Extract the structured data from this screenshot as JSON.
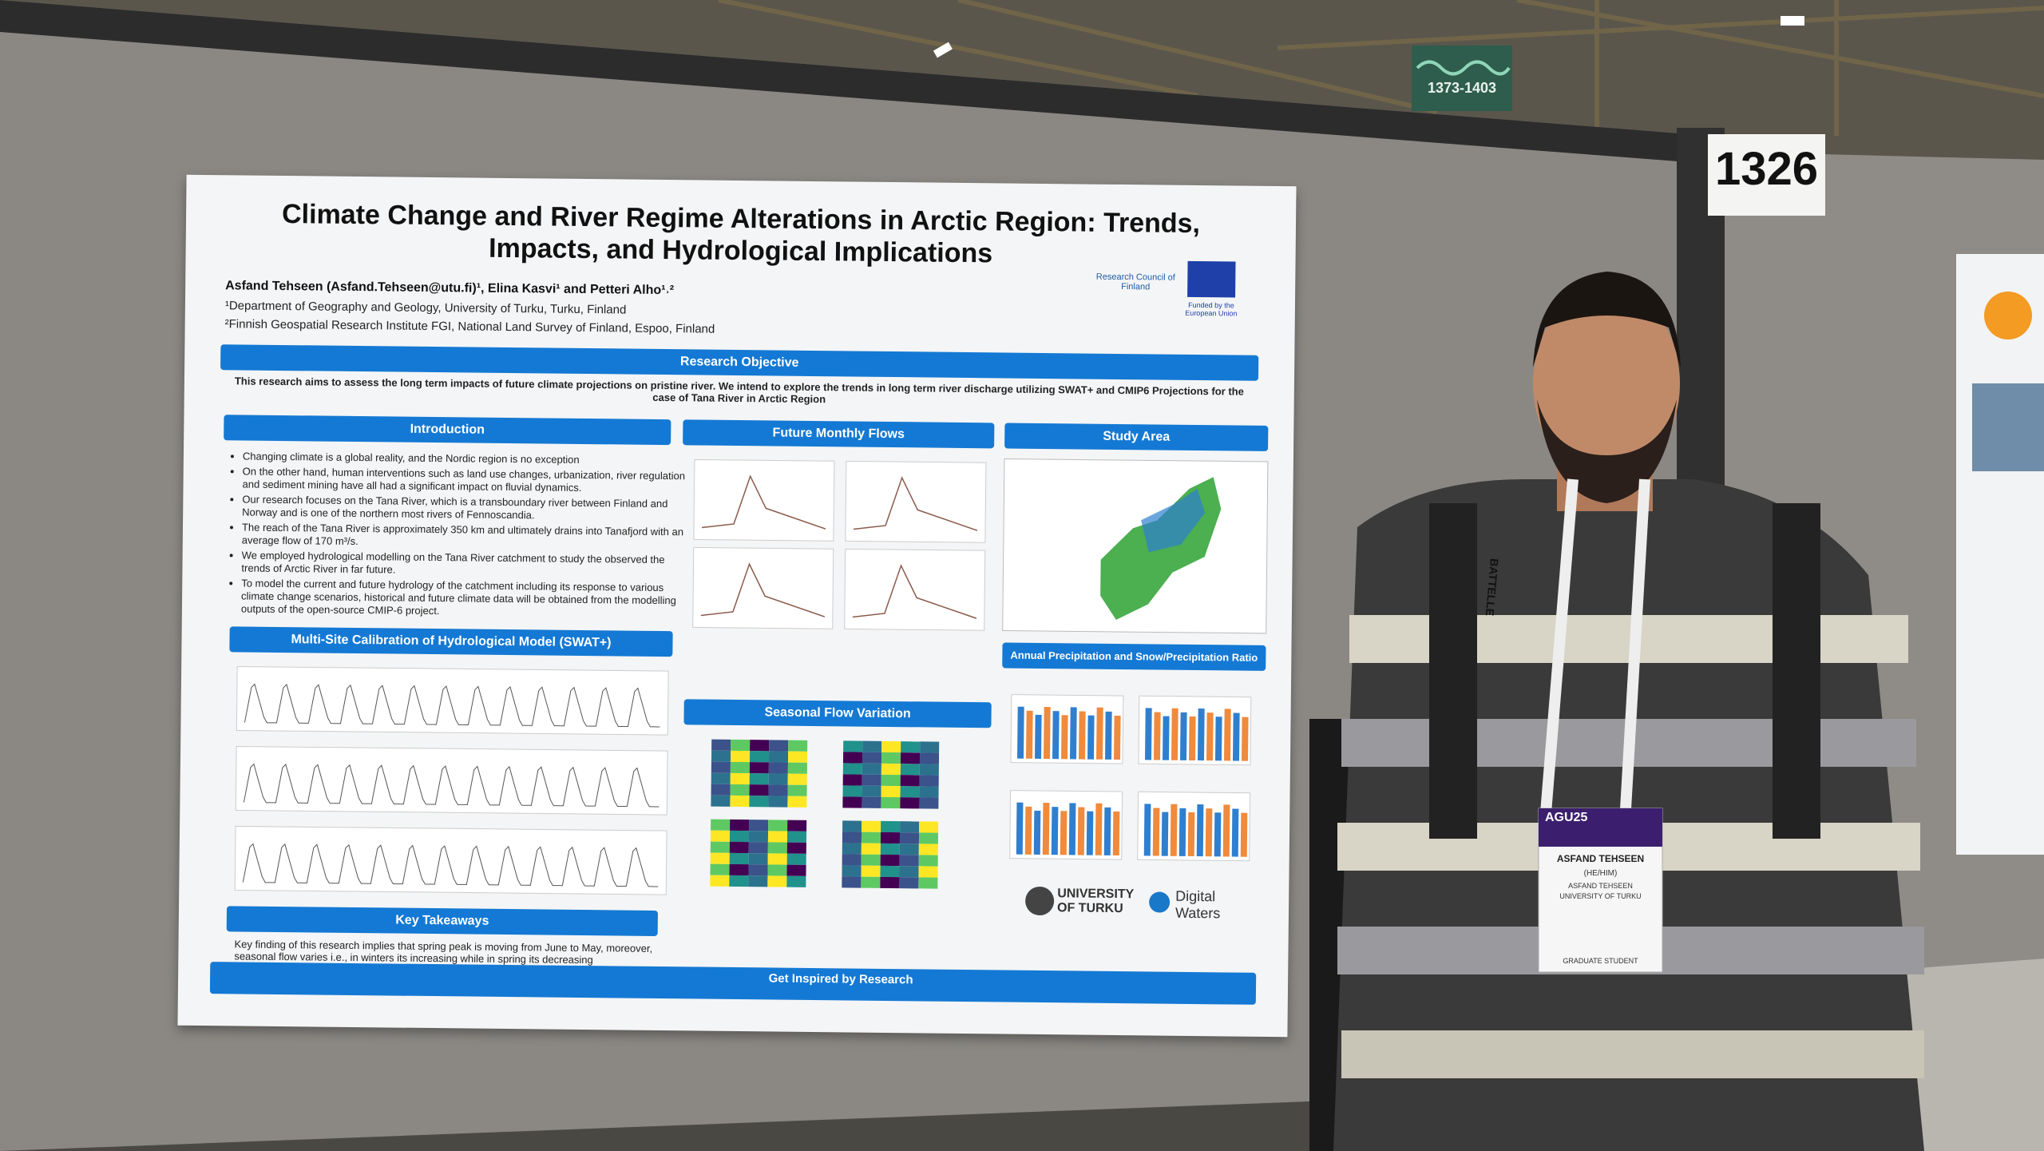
{
  "booth": {
    "number": "1326",
    "sign": "1373-1403"
  },
  "poster": {
    "title": "Climate Change and River Regime Alterations in Arctic Region: Trends, Impacts, and Hydrological Implications",
    "authors": "Asfand Tehseen (Asfand.Tehseen@utu.fi)¹, Elina Kasvi¹ and Petteri Alho¹˒²",
    "affiliations": [
      "¹Department of Geography and Geology, University of Turku, Turku, Finland",
      "²Finnish Geospatial Research Institute FGI, National Land Survey of Finland, Espoo, Finland"
    ],
    "logos": [
      "Research Council of Finland",
      "Funded by the European Union",
      "UNIVERSITY OF TURKU",
      "Digital Waters"
    ],
    "objective": {
      "heading": "Research Objective",
      "text": "This research aims to assess the long term impacts of future climate projections on pristine river. We intend to explore the trends in long term river discharge utilizing SWAT+ and CMIP6 Projections for the case of Tana River in Arctic Region"
    },
    "introduction": {
      "heading": "Introduction",
      "bullets": [
        "Changing climate is a global reality, and the Nordic region is no exception",
        "On the other hand, human interventions such as land use changes, urbanization, river regulation and sediment mining have all had a significant impact on fluvial dynamics.",
        "Our research focuses on the Tana River, which is a transboundary river between Finland and Norway and is one of the northern most rivers of Fennoscandia.",
        "The reach of the Tana River is approximately 350 km and ultimately drains into Tanafjord with an average flow of 170 m³/s.",
        "We employed hydrological modelling on the Tana River catchment to study the observed the trends of Arctic River in far future.",
        "To model the current and future hydrology of the catchment including its response to various climate change scenarios, historical and future climate data will be obtained from the modelling outputs of the open-source CMIP-6 project."
      ]
    },
    "headings": {
      "future_flows": "Future Monthly Flows",
      "study_area": "Study Area",
      "calibration": "Multi-Site Calibration of Hydrological Model (SWAT+)",
      "seasonal": "Seasonal Flow Variation",
      "precipitation": "Annual Precipitation and Snow/Precipitation Ratio",
      "takeaways": "Key Takeaways",
      "inspired": "Get Inspired by Research"
    },
    "takeaway_text": "Key finding of this research implies that spring peak is moving from June to May, moreover, seasonal flow varies i.e., in winters its increasing while in spring its decreasing"
  },
  "badge": {
    "event": "AGU25",
    "name": "ASFAND TEHSEEN",
    "pronouns": "(HE/HIM)",
    "full_name": "ASFAND TEHSEEN",
    "org": "UNIVERSITY OF TURKU",
    "role": "GRADUATE STUDENT",
    "lanyard": "BATTELLE"
  }
}
